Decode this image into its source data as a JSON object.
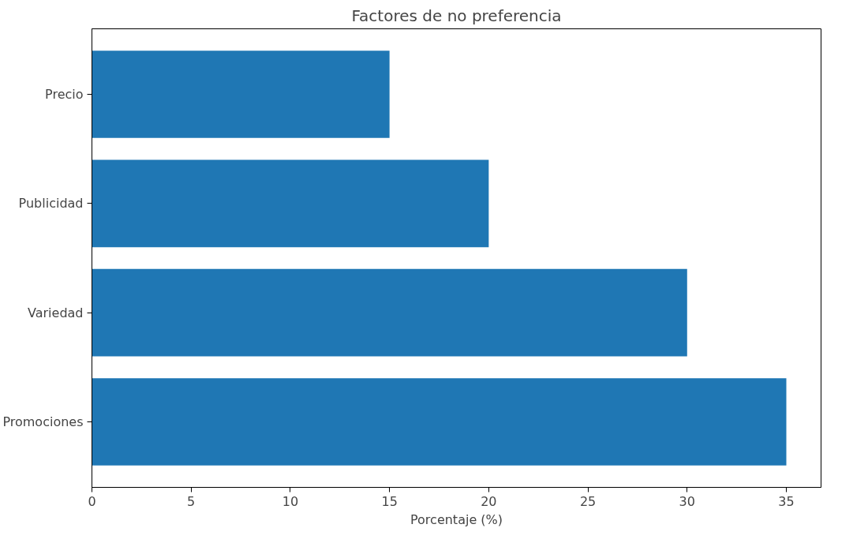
{
  "chart_data": {
    "type": "bar",
    "orientation": "horizontal",
    "title": "Factores de no preferencia",
    "xlabel": "Porcentaje (%)",
    "categories": [
      "Precio",
      "Publicidad",
      "Variedad",
      "Promociones"
    ],
    "values": [
      15,
      20,
      30,
      35
    ],
    "color": "#1f77b4",
    "xlim": [
      0,
      36.75
    ],
    "xticks": [
      0,
      5,
      10,
      15,
      20,
      25,
      30,
      35
    ],
    "grid": false
  }
}
